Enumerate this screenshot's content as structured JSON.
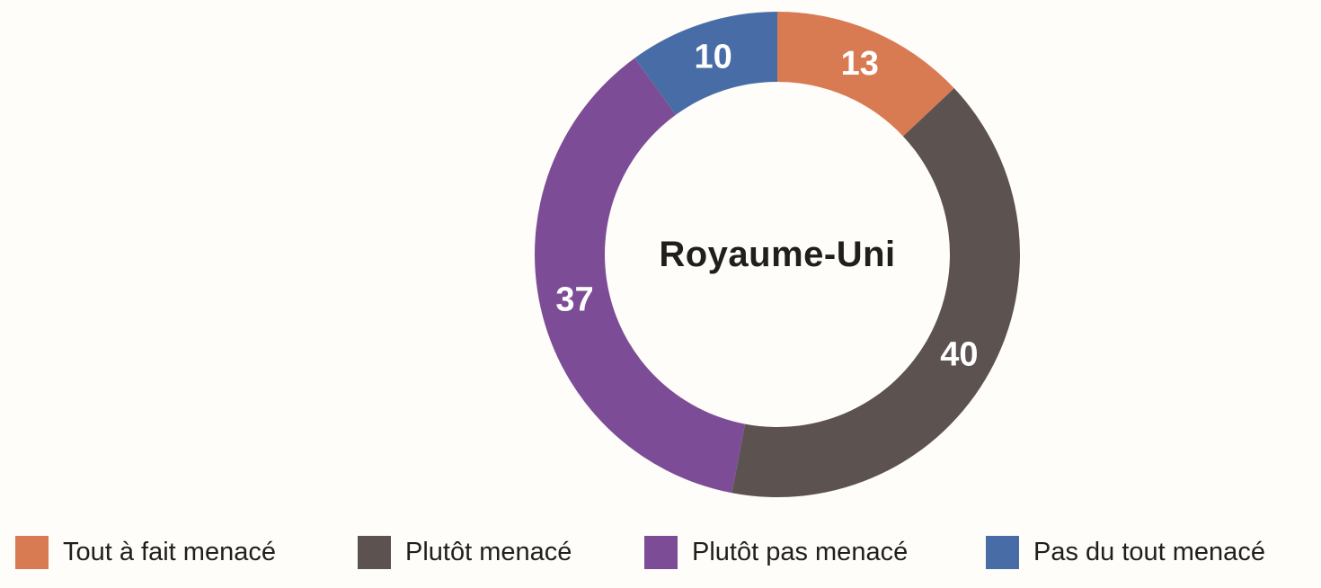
{
  "background_color": "#fffdf9",
  "text_color": "#211e1c",
  "chart_data": {
    "type": "pie",
    "subtype": "donut",
    "center_label": "Royaume-Uni",
    "categories": [
      "Tout à fait menacé",
      "Plutôt menacé",
      "Plutôt pas menacé",
      "Pas du tout menacé"
    ],
    "values": [
      13,
      40,
      37,
      10
    ],
    "value_labels": [
      "13",
      "40",
      "37",
      "10"
    ],
    "colors": [
      "#d87b53",
      "#5c5250",
      "#7c4d96",
      "#486da6"
    ],
    "segment_label_color": "#ffffff",
    "start_angle_deg": 0,
    "direction": "clockwise",
    "legend_position": "bottom",
    "title": "Royaume-Uni"
  }
}
